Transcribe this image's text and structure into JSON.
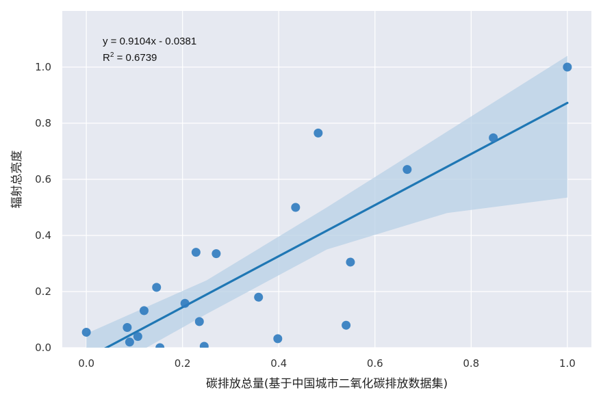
{
  "chart_data": {
    "type": "scatter",
    "xlabel": "碳排放总量(基于中国城市二氧化碳排放数据集)",
    "ylabel": "辐射总亮度",
    "xlim": [
      -0.05,
      1.05
    ],
    "ylim": [
      0.0,
      1.2
    ],
    "xticks": [
      0.0,
      0.2,
      0.4,
      0.6,
      0.8,
      1.0
    ],
    "xtick_labels": [
      "0.0",
      "0.2",
      "0.4",
      "0.6",
      "0.8",
      "1.0"
    ],
    "yticks": [
      0.0,
      0.2,
      0.4,
      0.6,
      0.8,
      1.0
    ],
    "ytick_labels": [
      "0.0",
      "0.2",
      "0.4",
      "0.6",
      "0.8",
      "1.0"
    ],
    "grid": true,
    "points": [
      {
        "x": 0.0,
        "y": 0.055
      },
      {
        "x": 0.085,
        "y": 0.072
      },
      {
        "x": 0.09,
        "y": 0.02
      },
      {
        "x": 0.107,
        "y": 0.04
      },
      {
        "x": 0.12,
        "y": 0.132
      },
      {
        "x": 0.146,
        "y": 0.215
      },
      {
        "x": 0.153,
        "y": 0.0
      },
      {
        "x": 0.205,
        "y": 0.158
      },
      {
        "x": 0.228,
        "y": 0.34
      },
      {
        "x": 0.235,
        "y": 0.093
      },
      {
        "x": 0.245,
        "y": 0.005
      },
      {
        "x": 0.27,
        "y": 0.335
      },
      {
        "x": 0.358,
        "y": 0.18
      },
      {
        "x": 0.398,
        "y": 0.032
      },
      {
        "x": 0.435,
        "y": 0.5
      },
      {
        "x": 0.482,
        "y": 0.765
      },
      {
        "x": 0.54,
        "y": 0.08
      },
      {
        "x": 0.549,
        "y": 0.305
      },
      {
        "x": 0.667,
        "y": 0.635
      },
      {
        "x": 0.846,
        "y": 0.748
      },
      {
        "x": 1.0,
        "y": 1.0
      }
    ],
    "fit": {
      "slope": 0.9104,
      "intercept": -0.0381,
      "x_range": [
        0.0,
        1.0
      ]
    },
    "band": {
      "x": [
        0.0,
        0.25,
        0.5,
        0.75,
        1.0
      ],
      "lower": [
        -0.12,
        0.12,
        0.35,
        0.48,
        0.535
      ],
      "upper": [
        0.05,
        0.24,
        0.5,
        0.77,
        1.04
      ]
    },
    "colors": {
      "point": "#2f7bbf",
      "line": "#1f77b4",
      "band": "#b8d0e6",
      "background": "#e6e9f1",
      "grid": "#ffffff"
    }
  },
  "annotation": {
    "equation": "y = 0.9104x - 0.0381",
    "r2_prefix": "R",
    "r2_sup": "2",
    "r2_value": " = 0.6739"
  }
}
